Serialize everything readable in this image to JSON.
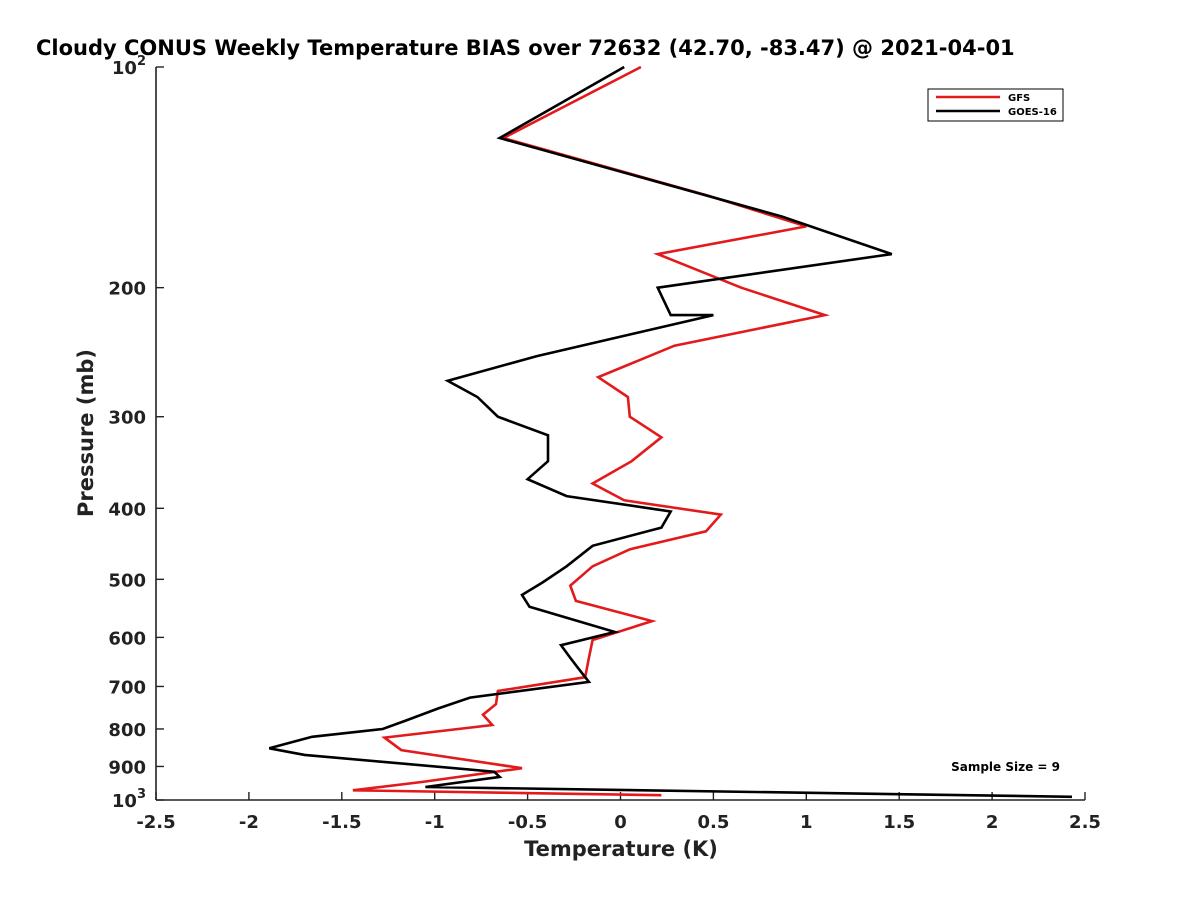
{
  "chart_data": {
    "type": "line",
    "title": "Cloudy CONUS Weekly Temperature BIAS over 72632 (42.70, -83.47) @ 2021-04-01",
    "xlabel": "Temperature (K)",
    "ylabel": "Pressure (mb)",
    "xlim": [
      -2.5,
      2.5
    ],
    "ylim": [
      1000,
      100
    ],
    "y_scale": "log",
    "grid": false,
    "legend_position": "top-right",
    "annotation": "Sample Size = 9",
    "x_ticks": [
      "-2.5",
      "-2",
      "-1.5",
      "-1",
      "-0.5",
      "0",
      "0.5",
      "1",
      "1.5",
      "2",
      "2.5"
    ],
    "y_ticks": [
      {
        "base": "10",
        "exp": "2",
        "value": 100
      },
      {
        "base": "200",
        "exp": "",
        "value": 200
      },
      {
        "base": "300",
        "exp": "",
        "value": 300
      },
      {
        "base": "400",
        "exp": "",
        "value": 400
      },
      {
        "base": "500",
        "exp": "",
        "value": 500
      },
      {
        "base": "600",
        "exp": "",
        "value": 600
      },
      {
        "base": "700",
        "exp": "",
        "value": 700
      },
      {
        "base": "800",
        "exp": "",
        "value": 800
      },
      {
        "base": "900",
        "exp": "",
        "value": 900
      },
      {
        "base": "10",
        "exp": "3",
        "value": 1000
      }
    ],
    "series": [
      {
        "name": "GFS",
        "color": "#e31a1c",
        "points": [
          [
            0.11,
            100
          ],
          [
            -0.63,
            125
          ],
          [
            0.48,
            150
          ],
          [
            1.0,
            165
          ],
          [
            0.2,
            180
          ],
          [
            0.65,
            200
          ],
          [
            1.1,
            218
          ],
          [
            0.29,
            240
          ],
          [
            -0.12,
            265
          ],
          [
            0.04,
            282
          ],
          [
            0.05,
            300
          ],
          [
            0.22,
            320
          ],
          [
            0.06,
            345
          ],
          [
            -0.15,
            370
          ],
          [
            0.02,
            390
          ],
          [
            0.54,
            408
          ],
          [
            0.46,
            430
          ],
          [
            0.05,
            455
          ],
          [
            -0.15,
            480
          ],
          [
            -0.27,
            510
          ],
          [
            -0.24,
            535
          ],
          [
            0.17,
            570
          ],
          [
            -0.15,
            605
          ],
          [
            -0.17,
            640
          ],
          [
            -0.19,
            680
          ],
          [
            -0.66,
            710
          ],
          [
            -0.67,
            740
          ],
          [
            -0.74,
            765
          ],
          [
            -0.69,
            790
          ],
          [
            -1.27,
            822
          ],
          [
            -1.18,
            855
          ],
          [
            -0.53,
            905
          ],
          [
            -1.07,
            945
          ],
          [
            -1.44,
            970
          ],
          [
            0.22,
            985
          ]
        ]
      },
      {
        "name": "GOES-16",
        "color": "#000000",
        "points": [
          [
            0.02,
            100
          ],
          [
            -0.65,
            125
          ],
          [
            0.87,
            160
          ],
          [
            1.46,
            180
          ],
          [
            0.2,
            200
          ],
          [
            0.27,
            218
          ],
          [
            0.5,
            218
          ],
          [
            -0.45,
            248
          ],
          [
            -0.93,
            268
          ],
          [
            -0.77,
            282
          ],
          [
            -0.66,
            300
          ],
          [
            -0.39,
            318
          ],
          [
            -0.39,
            345
          ],
          [
            -0.5,
            365
          ],
          [
            -0.29,
            385
          ],
          [
            0.27,
            404
          ],
          [
            0.22,
            425
          ],
          [
            -0.15,
            450
          ],
          [
            -0.29,
            480
          ],
          [
            -0.42,
            505
          ],
          [
            -0.53,
            525
          ],
          [
            -0.49,
            545
          ],
          [
            -0.03,
            590
          ],
          [
            -0.32,
            615
          ],
          [
            -0.27,
            640
          ],
          [
            -0.23,
            660
          ],
          [
            -0.17,
            690
          ],
          [
            -0.81,
            725
          ],
          [
            -0.98,
            750
          ],
          [
            -1.16,
            780
          ],
          [
            -1.28,
            800
          ],
          [
            -1.66,
            820
          ],
          [
            -1.89,
            850
          ],
          [
            -1.7,
            868
          ],
          [
            -0.68,
            915
          ],
          [
            -0.65,
            930
          ],
          [
            -1.05,
            960
          ],
          [
            2.43,
            990
          ]
        ]
      }
    ]
  }
}
